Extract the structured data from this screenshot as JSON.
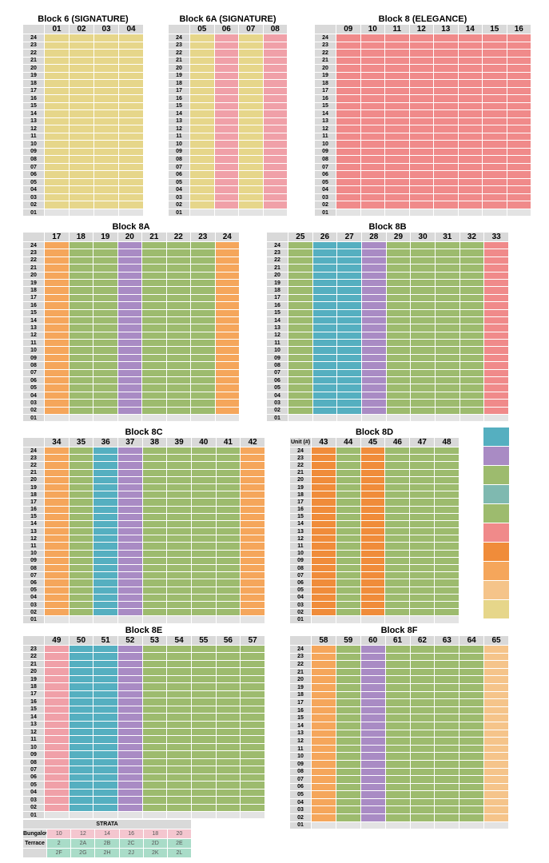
{
  "blocks": [
    {
      "title": "Block 6 (SIGNATURE)",
      "units": [
        "01",
        "02",
        "03",
        "04"
      ],
      "colors": [
        "#e6d68a",
        "#e6d68a",
        "#e6d68a",
        "#e6d68a"
      ],
      "floors": [
        "24",
        "23",
        "22",
        "21",
        "20",
        "19",
        "18",
        "17",
        "16",
        "15",
        "14",
        "13",
        "12",
        "11",
        "10",
        "09",
        "08",
        "07",
        "06",
        "05",
        "04",
        "03",
        "02",
        "01"
      ]
    },
    {
      "title": "Block 6A (SIGNATURE)",
      "units": [
        "05",
        "06",
        "07",
        "08"
      ],
      "colors": [
        "#e6d68a",
        "#f0a0a8",
        "#e6d68a",
        "#f0a0a8"
      ],
      "floors": [
        "24",
        "23",
        "22",
        "21",
        "20",
        "19",
        "18",
        "17",
        "16",
        "15",
        "14",
        "13",
        "12",
        "11",
        "10",
        "09",
        "08",
        "07",
        "06",
        "05",
        "04",
        "03",
        "02",
        "01"
      ]
    },
    {
      "title": "Block 8 (ELEGANCE)",
      "units": [
        "09",
        "10",
        "11",
        "12",
        "13",
        "14",
        "15",
        "16"
      ],
      "colors": [
        "#f08a8a",
        "#f08a8a",
        "#f08a8a",
        "#f08a8a",
        "#f08a8a",
        "#f08a8a",
        "#f08a8a",
        "#f08a8a"
      ],
      "floors": [
        "24",
        "23",
        "22",
        "21",
        "20",
        "19",
        "18",
        "17",
        "16",
        "15",
        "14",
        "13",
        "12",
        "11",
        "10",
        "09",
        "08",
        "07",
        "06",
        "05",
        "04",
        "03",
        "02",
        "01"
      ]
    },
    {
      "title": "Block 8A",
      "units": [
        "17",
        "18",
        "19",
        "20",
        "21",
        "22",
        "23",
        "24"
      ],
      "colors": [
        "#f5a65b",
        "#9dbb6e",
        "#9dbb6e",
        "#a98bc4",
        "#9dbb6e",
        "#9dbb6e",
        "#9dbb6e",
        "#f5a65b"
      ],
      "floors": [
        "24",
        "23",
        "22",
        "21",
        "20",
        "19",
        "18",
        "17",
        "16",
        "15",
        "14",
        "13",
        "12",
        "11",
        "10",
        "09",
        "08",
        "07",
        "06",
        "05",
        "04",
        "03",
        "02",
        "01"
      ]
    },
    {
      "title": "Block 8B",
      "units": [
        "25",
        "26",
        "27",
        "28",
        "29",
        "30",
        "31",
        "32",
        "33"
      ],
      "colors": [
        "#9dbb6e",
        "#55afc0",
        "#55afc0",
        "#a98bc4",
        "#9dbb6e",
        "#9dbb6e",
        "#9dbb6e",
        "#9dbb6e",
        "#f08a8a"
      ],
      "floors": [
        "24",
        "23",
        "22",
        "21",
        "20",
        "19",
        "18",
        "17",
        "16",
        "15",
        "14",
        "13",
        "12",
        "11",
        "10",
        "09",
        "08",
        "07",
        "06",
        "05",
        "04",
        "03",
        "02",
        "01"
      ]
    },
    {
      "title": "Block 8C",
      "units": [
        "34",
        "35",
        "36",
        "37",
        "38",
        "39",
        "40",
        "41",
        "42"
      ],
      "colors": [
        "#f5a65b",
        "#9dbb6e",
        "#55afc0",
        "#a98bc4",
        "#9dbb6e",
        "#9dbb6e",
        "#9dbb6e",
        "#9dbb6e",
        "#f5a65b"
      ],
      "floors": [
        "24",
        "23",
        "22",
        "21",
        "20",
        "19",
        "18",
        "17",
        "16",
        "15",
        "14",
        "13",
        "12",
        "11",
        "10",
        "09",
        "08",
        "07",
        "06",
        "05",
        "04",
        "03",
        "02",
        "01"
      ]
    },
    {
      "title": "Block 8D",
      "header": "Unit (#)",
      "units": [
        "43",
        "44",
        "45",
        "46",
        "47",
        "48"
      ],
      "colors": [
        "#f08c3a",
        "#9dbb6e",
        "#f08c3a",
        "#9dbb6e",
        "#9dbb6e",
        "#9dbb6e"
      ],
      "floors": [
        "24",
        "23",
        "22",
        "21",
        "20",
        "19",
        "18",
        "17",
        "16",
        "15",
        "14",
        "13",
        "12",
        "11",
        "10",
        "09",
        "08",
        "07",
        "06",
        "05",
        "04",
        "03",
        "02",
        "01"
      ]
    },
    {
      "title": "Block 8E",
      "units": [
        "49",
        "50",
        "51",
        "52",
        "53",
        "54",
        "55",
        "56",
        "57"
      ],
      "colors": [
        "#f0a0a8",
        "#55afc0",
        "#55afc0",
        "#a98bc4",
        "#9dbb6e",
        "#9dbb6e",
        "#9dbb6e",
        "#9dbb6e",
        "#9dbb6e"
      ],
      "floors": [
        "23",
        "22",
        "21",
        "20",
        "19",
        "18",
        "17",
        "16",
        "15",
        "14",
        "13",
        "12",
        "11",
        "10",
        "09",
        "08",
        "07",
        "06",
        "05",
        "04",
        "03",
        "02",
        "01"
      ]
    },
    {
      "title": "Block 8F",
      "units": [
        "58",
        "59",
        "60",
        "61",
        "62",
        "63",
        "64",
        "65"
      ],
      "colors": [
        "#f5a65b",
        "#9dbb6e",
        "#a98bc4",
        "#9dbb6e",
        "#9dbb6e",
        "#9dbb6e",
        "#9dbb6e",
        "#f5c48a"
      ],
      "floors": [
        "24",
        "23",
        "22",
        "21",
        "20",
        "19",
        "18",
        "17",
        "16",
        "15",
        "14",
        "13",
        "12",
        "11",
        "10",
        "09",
        "08",
        "07",
        "06",
        "05",
        "04",
        "03",
        "02",
        "01"
      ]
    }
  ],
  "legend": [
    {
      "color": "#55afc0"
    },
    {
      "color": "#a98bc4"
    },
    {
      "color": "#9dbb6e"
    },
    {
      "color": "#7fb9b0"
    },
    {
      "color": "#9dbb6e"
    },
    {
      "color": "#f08a8a"
    },
    {
      "color": "#f08c3a"
    },
    {
      "color": "#f5a65b"
    },
    {
      "color": "#f5c48a"
    },
    {
      "color": "#e6d68a"
    }
  ],
  "strata": {
    "title": "STRATA",
    "rows": [
      {
        "label": "Bungalow",
        "color": "#f4c6cf",
        "cells": [
          "10",
          "12",
          "14",
          "16",
          "18",
          "20"
        ]
      },
      {
        "label": "Terrace",
        "color": "#a9dcc8",
        "cells": [
          "2",
          "2A",
          "2B",
          "2C",
          "2D",
          "2E"
        ]
      },
      {
        "label": "",
        "color": "#a9dcc8",
        "cells": [
          "2F",
          "2G",
          "2H",
          "2J",
          "2K",
          "2L"
        ]
      }
    ]
  }
}
